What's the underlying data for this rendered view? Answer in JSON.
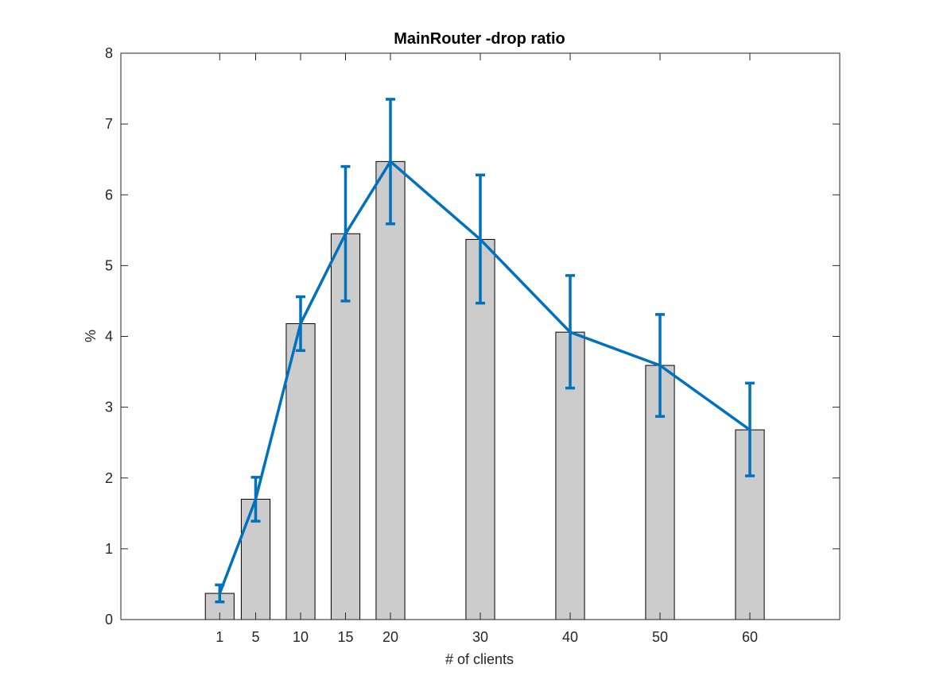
{
  "chart_data": {
    "type": "bar",
    "title": "MainRouter -drop ratio",
    "xlabel": "# of clients",
    "ylabel": "%",
    "x": [
      1,
      5,
      10,
      15,
      20,
      30,
      40,
      50,
      60
    ],
    "x_tick_labels": [
      "1",
      "5",
      "10",
      "15",
      "20",
      "30",
      "40",
      "50",
      "60"
    ],
    "xlim": [
      -10,
      70
    ],
    "ylim": [
      0,
      8
    ],
    "y_ticks": [
      0,
      1,
      2,
      3,
      4,
      5,
      6,
      7,
      8
    ],
    "grid": false,
    "bar_color": "#cccccc",
    "bar_edge_color": "#000000",
    "line_color": "#0072bd",
    "series": [
      {
        "kind": "bar",
        "values": [
          0.37,
          1.7,
          4.18,
          5.45,
          6.47,
          5.37,
          4.06,
          3.59,
          2.68
        ]
      },
      {
        "kind": "line-errorbar",
        "values": [
          0.37,
          1.7,
          4.18,
          5.45,
          6.47,
          5.37,
          4.06,
          3.59,
          2.68
        ],
        "error_lower": [
          0.25,
          1.39,
          3.8,
          4.5,
          5.59,
          4.47,
          3.27,
          2.87,
          2.03
        ],
        "error_upper": [
          0.49,
          2.01,
          4.56,
          6.4,
          7.35,
          6.28,
          4.86,
          4.31,
          3.34
        ]
      }
    ]
  }
}
